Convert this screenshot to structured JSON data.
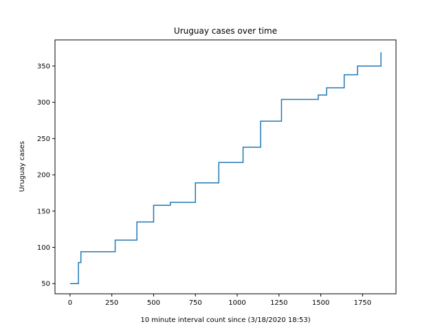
{
  "chart_data": {
    "type": "line",
    "title": "Uruguay cases over time",
    "xlabel": "10 minute interval count since (3/18/2020 18:53)",
    "ylabel": "Uruguay cases",
    "xlim": [
      -90,
      1950
    ],
    "ylim": [
      36,
      386
    ],
    "xticks": [
      0,
      250,
      500,
      750,
      1000,
      1250,
      1500,
      1750
    ],
    "yticks": [
      50,
      100,
      150,
      200,
      250,
      300,
      350
    ],
    "grid": false,
    "line_color": "#1f77b4",
    "step": "post",
    "series": [
      {
        "x": [
          0,
          50,
          65,
          270,
          400,
          500,
          600,
          750,
          890,
          1035,
          1140,
          1265,
          1485,
          1535,
          1640,
          1720,
          1860
        ],
        "y": [
          50,
          79,
          94,
          110,
          135,
          158,
          162,
          189,
          217,
          238,
          274,
          304,
          310,
          320,
          338,
          350,
          369
        ]
      }
    ]
  }
}
